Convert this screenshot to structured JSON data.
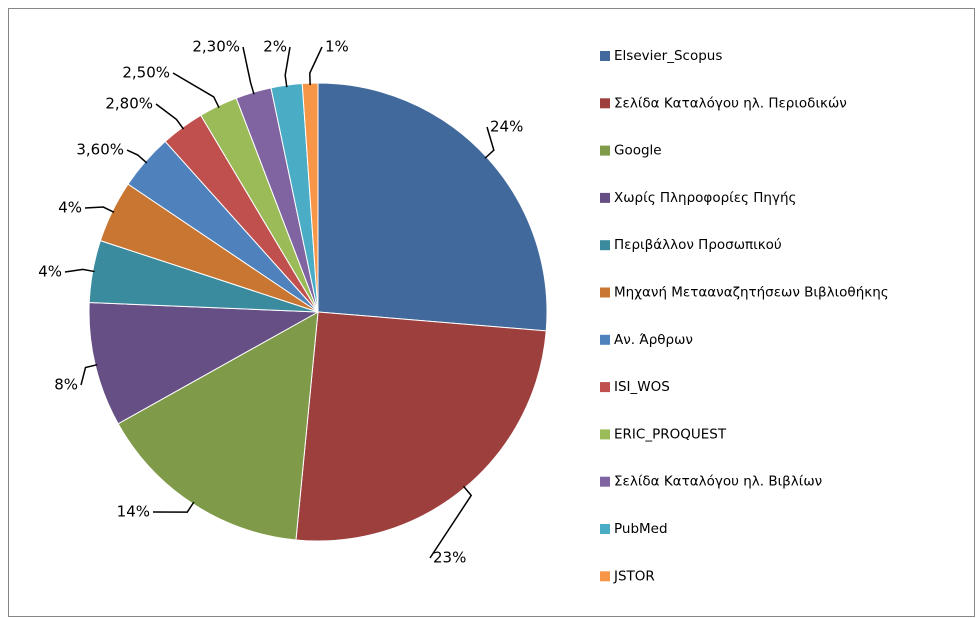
{
  "chart_data": {
    "type": "pie",
    "categories": [
      "Elsevier_Scopus",
      "Σελίδα Καταλόγου ηλ. Περιοδικών",
      "Google",
      "Χωρίς Πληροφορίες Πηγής",
      "Περιβάλλον Προσωπικού",
      "Μηχανή Μετααναζητήσεων Βιβλιοθήκης",
      "Αν. Άρθρων",
      "ISI_WOS",
      "ERIC_PROQUEST",
      "Σελίδα Καταλόγου ηλ. Βιβλίων",
      "PubMed",
      "JSTOR"
    ],
    "values": [
      24,
      23,
      14,
      8,
      4,
      4,
      3.6,
      2.8,
      2.5,
      2.3,
      2,
      1
    ],
    "value_labels": [
      "24%",
      "23%",
      "14%",
      "8%",
      "4%",
      "4%",
      "3,60%",
      "2,80%",
      "2,50%",
      "2,30%",
      "2%",
      "1%"
    ],
    "colors": [
      "#42699b",
      "#9c3f3d",
      "#7f9a48",
      "#664f85",
      "#3b8b9f",
      "#c87631",
      "#4f81bd",
      "#c0504d",
      "#9bbb59",
      "#8064a2",
      "#4bacc6",
      "#f79646"
    ],
    "legend": "right"
  }
}
